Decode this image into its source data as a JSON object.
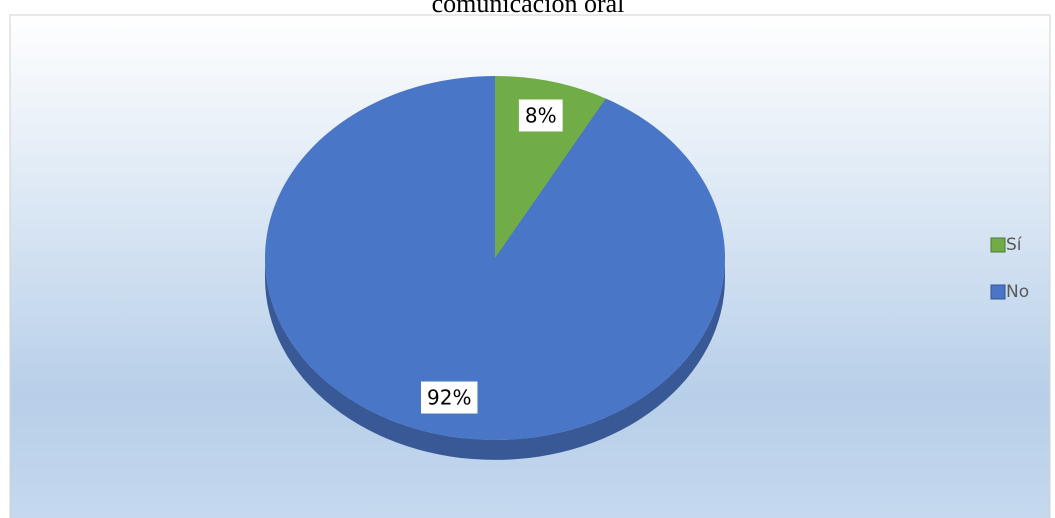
{
  "chart_data": {
    "type": "pie",
    "title": "comunicación oral",
    "categories": [
      "Sí",
      "No"
    ],
    "values": [
      8,
      92
    ],
    "value_labels": [
      "8%",
      "92%"
    ],
    "colors": [
      "#70ad47",
      "#4a76c8"
    ],
    "legend": "right"
  }
}
